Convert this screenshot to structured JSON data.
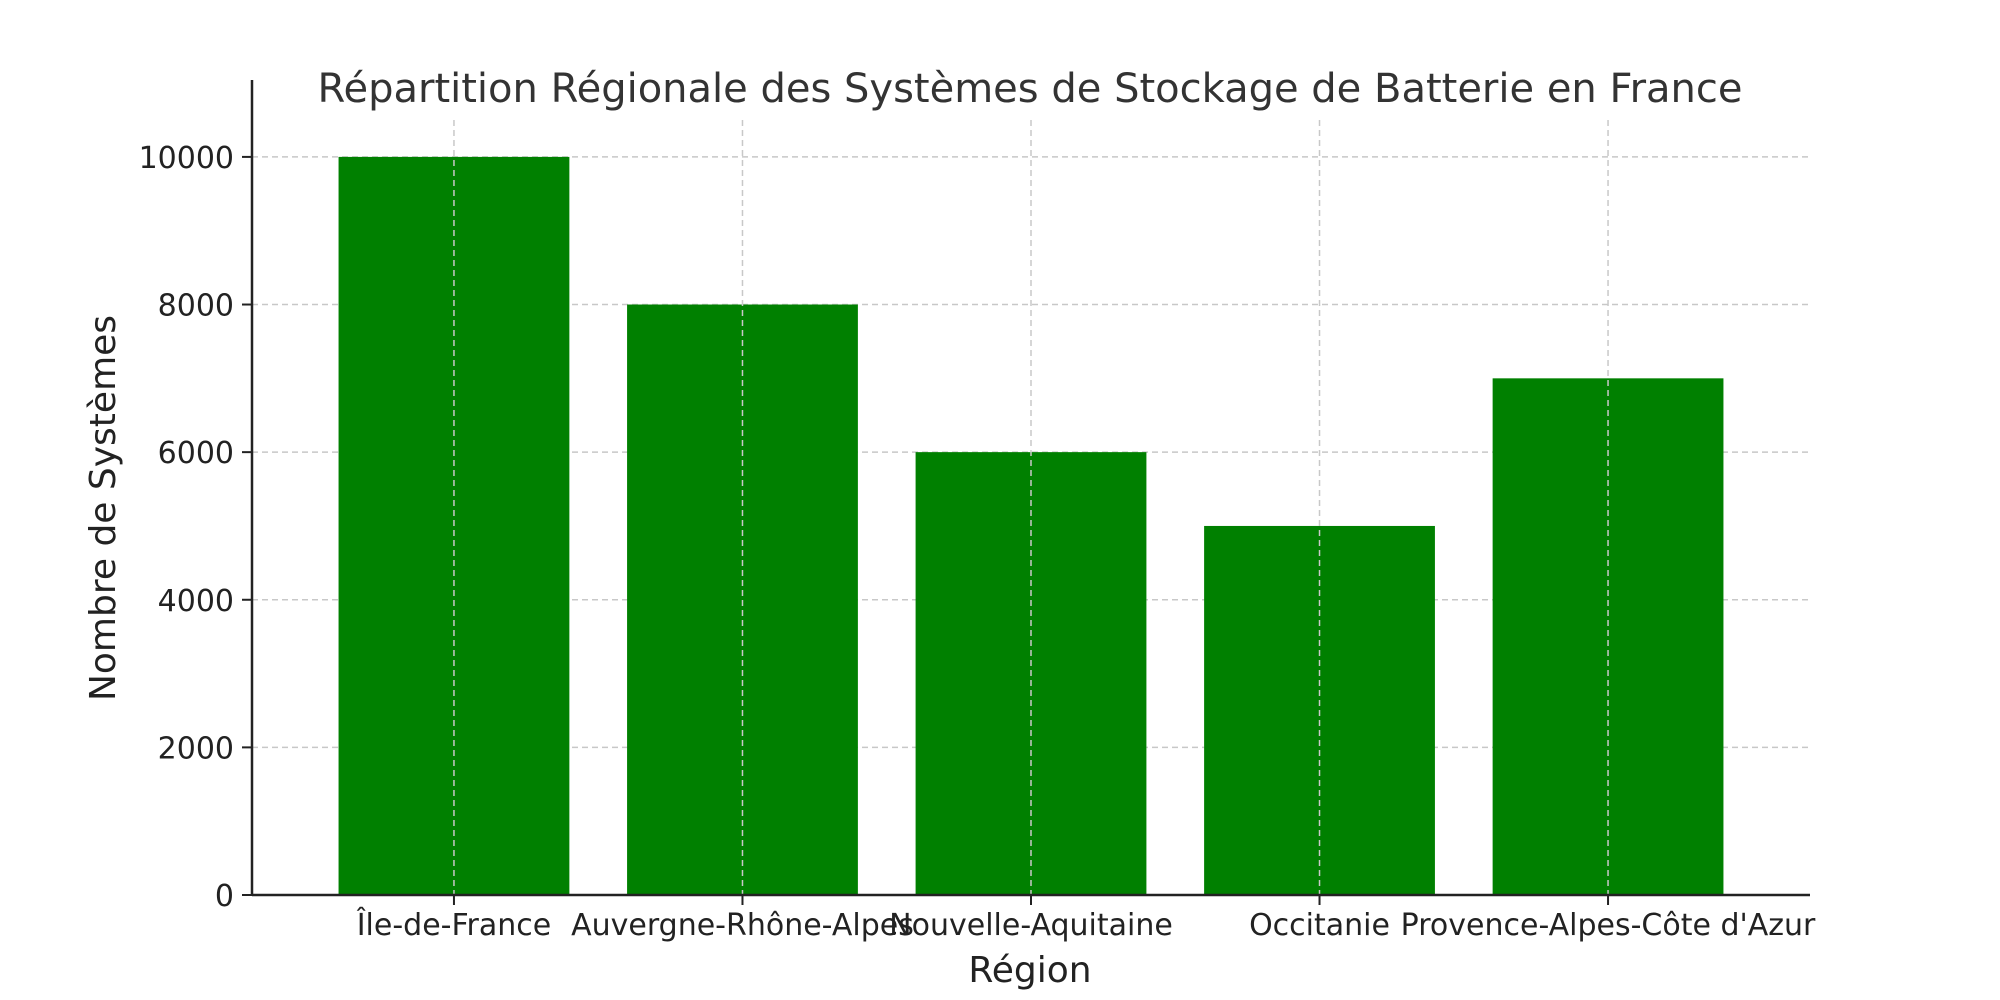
{
  "chart_data": {
    "type": "bar",
    "title": "Répartition Régionale des Systèmes de Stockage de Batterie en France",
    "xlabel": "Région",
    "ylabel": "Nombre de Systèmes",
    "categories": [
      "Île-de-France",
      "Auvergne-Rhône-Alpes",
      "Nouvelle-Aquitaine",
      "Occitanie",
      "Provence-Alpes-Côte d'Azur"
    ],
    "values": [
      10000,
      8000,
      6000,
      5000,
      7000
    ],
    "ylim": [
      0,
      10500
    ],
    "yticks": [
      0,
      2000,
      4000,
      6000,
      8000,
      10000
    ],
    "bar_color": "#008000",
    "grid": true
  }
}
